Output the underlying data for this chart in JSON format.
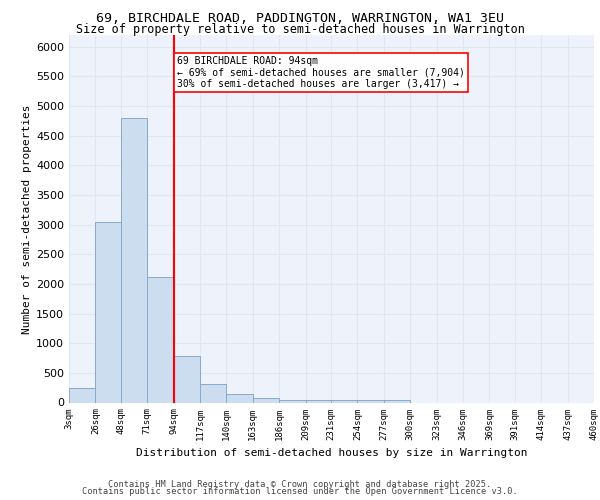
{
  "title_line1": "69, BIRCHDALE ROAD, PADDINGTON, WARRINGTON, WA1 3EU",
  "title_line2": "Size of property relative to semi-detached houses in Warrington",
  "xlabel": "Distribution of semi-detached houses by size in Warrington",
  "ylabel": "Number of semi-detached properties",
  "footer_line1": "Contains HM Land Registry data © Crown copyright and database right 2025.",
  "footer_line2": "Contains public sector information licensed under the Open Government Licence v3.0.",
  "bin_edges": [
    3,
    26,
    48,
    71,
    94,
    117,
    140,
    163,
    186,
    209,
    231,
    254,
    277,
    300,
    323,
    346,
    369,
    391,
    414,
    437,
    460
  ],
  "bin_labels": [
    "3sqm",
    "26sqm",
    "48sqm",
    "71sqm",
    "94sqm",
    "117sqm",
    "140sqm",
    "163sqm",
    "186sqm",
    "209sqm",
    "231sqm",
    "254sqm",
    "277sqm",
    "300sqm",
    "323sqm",
    "346sqm",
    "369sqm",
    "391sqm",
    "414sqm",
    "437sqm",
    "460sqm"
  ],
  "counts": [
    240,
    3050,
    4800,
    2120,
    780,
    305,
    140,
    70,
    50,
    50,
    50,
    50,
    50,
    0,
    0,
    0,
    0,
    0,
    0,
    0
  ],
  "bar_color": "#ccddf0",
  "bar_edge_color": "#88aacc",
  "vline_x": 94,
  "vline_color": "red",
  "annotation_text": "69 BIRCHDALE ROAD: 94sqm\n← 69% of semi-detached houses are smaller (7,904)\n30% of semi-detached houses are larger (3,417) →",
  "ylim": [
    0,
    6200
  ],
  "yticks": [
    0,
    500,
    1000,
    1500,
    2000,
    2500,
    3000,
    3500,
    4000,
    4500,
    5000,
    5500,
    6000
  ],
  "grid_color": "#dde8f5",
  "bg_color": "#eef2fa"
}
